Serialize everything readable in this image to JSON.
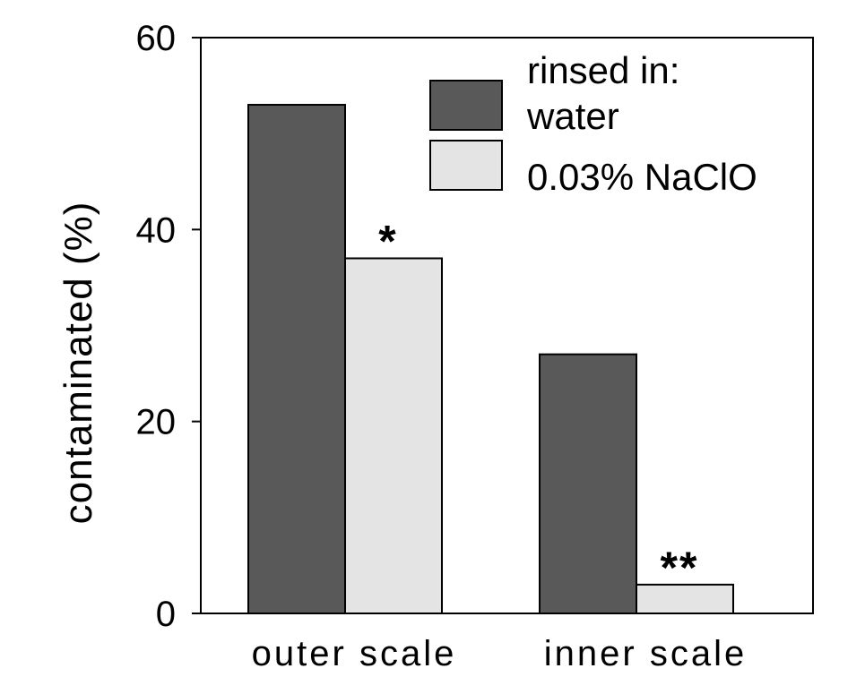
{
  "chart_data": {
    "type": "bar",
    "categories": [
      "outer scale",
      "inner scale"
    ],
    "series": [
      {
        "name": "water",
        "values": [
          53,
          27
        ],
        "color": "#595959"
      },
      {
        "name": "0.03% NaClO",
        "values": [
          37,
          3
        ],
        "color": "#e4e4e4"
      }
    ],
    "ylabel": "contaminated (%)",
    "xlabel": "",
    "ylim": [
      0,
      60
    ],
    "yticks": [
      0,
      20,
      40,
      60
    ],
    "grid": false,
    "legend": {
      "title": "rinsed in:",
      "placement": "top-right"
    },
    "annotations": [
      {
        "text": "*",
        "category": "outer scale",
        "series": "0.03% NaClO"
      },
      {
        "text": "**",
        "category": "inner scale",
        "series": "0.03% NaClO"
      }
    ]
  }
}
